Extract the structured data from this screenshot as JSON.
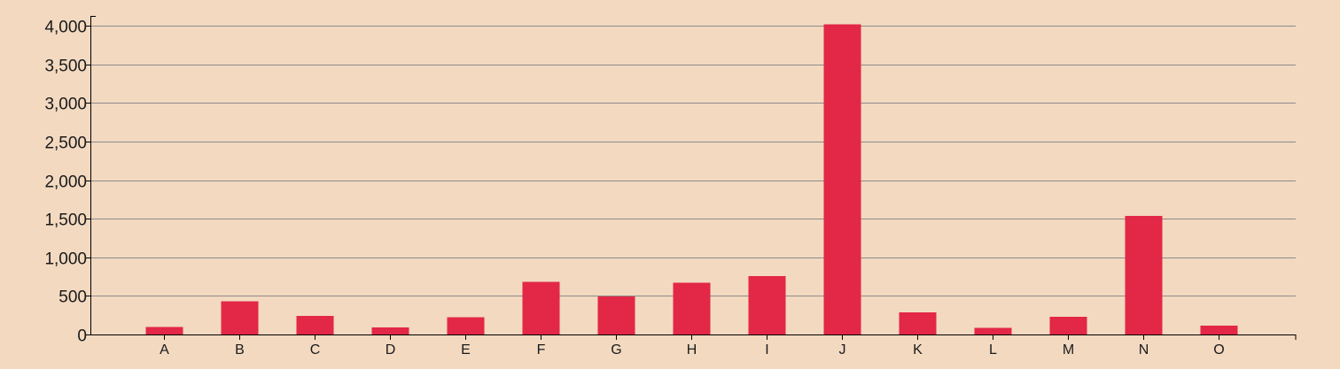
{
  "chart_data": {
    "type": "bar",
    "title": "",
    "xlabel": "",
    "ylabel": "",
    "categories": [
      "A",
      "B",
      "C",
      "D",
      "E",
      "F",
      "G",
      "H",
      "I",
      "J",
      "K",
      "L",
      "M",
      "N",
      "O"
    ],
    "values": [
      100,
      430,
      240,
      90,
      225,
      680,
      495,
      670,
      755,
      4020,
      285,
      85,
      230,
      1535,
      115
    ],
    "ylim": [
      0,
      4000
    ],
    "y_ticks": [
      0,
      500,
      1000,
      1500,
      2000,
      2500,
      3000,
      3500,
      4000
    ],
    "y_tick_labels": [
      "0",
      "500",
      "1,000",
      "1,500",
      "2,000",
      "2,500",
      "3,000",
      "3,500",
      "4,000"
    ],
    "grid": true,
    "legend": "none",
    "colors": {
      "bar": "#e32746",
      "background": "#f2d9c0",
      "grid": "#8c8c8c",
      "axis": "#000000"
    }
  }
}
